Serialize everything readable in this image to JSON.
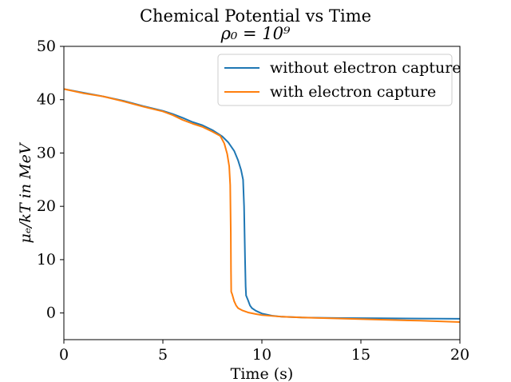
{
  "chart_data": {
    "type": "line",
    "title": "Chemical Potential vs Time",
    "subtitle": "ρ₀ = 10⁹",
    "xlabel": "Time (s)",
    "ylabel": "μₑ/kT in MeV",
    "xlim": [
      0,
      20
    ],
    "ylim": [
      -5,
      50
    ],
    "xticks": [
      0,
      5,
      10,
      15,
      20
    ],
    "yticks": [
      0,
      10,
      20,
      30,
      40,
      50
    ],
    "grid": false,
    "legend_position": "top-right",
    "series": [
      {
        "name": "without electron capture",
        "color": "#1f77b4",
        "x": [
          0,
          1,
          2,
          3,
          4,
          5,
          5.5,
          6,
          6.5,
          7,
          7.5,
          8,
          8.3,
          8.6,
          8.8,
          8.95,
          9.05,
          9.1,
          9.15,
          9.18,
          9.2,
          9.2,
          9.3,
          9.4,
          9.5,
          9.7,
          10,
          10.5,
          11,
          12,
          14,
          16,
          18,
          20
        ],
        "y": [
          42,
          41.3,
          40.6,
          39.8,
          38.8,
          37.9,
          37.3,
          36.6,
          35.8,
          35.2,
          34.3,
          33.1,
          32,
          30.4,
          28.6,
          26.8,
          25,
          20,
          10,
          5,
          3.5,
          3.3,
          2.4,
          1.4,
          0.9,
          0.4,
          -0.1,
          -0.5,
          -0.7,
          -0.85,
          -0.95,
          -1.0,
          -1.05,
          -1.08
        ]
      },
      {
        "name": "with electron capture",
        "color": "#ff7f0e",
        "x": [
          0,
          1,
          2,
          3,
          4,
          5,
          5.5,
          6,
          6.5,
          7,
          7.5,
          7.9,
          8.1,
          8.25,
          8.35,
          8.4,
          8.43,
          8.44,
          8.45,
          8.45,
          8.5,
          8.6,
          8.7,
          8.8,
          9,
          9.3,
          9.7,
          10,
          11,
          12,
          14,
          16,
          18,
          20
        ],
        "y": [
          42,
          41.2,
          40.6,
          39.7,
          38.7,
          37.8,
          37.1,
          36.2,
          35.5,
          34.9,
          34.0,
          33.2,
          31.8,
          29.8,
          27.5,
          24,
          15,
          8,
          4.5,
          4.0,
          3.5,
          2.2,
          1.4,
          0.9,
          0.5,
          0.1,
          -0.2,
          -0.4,
          -0.7,
          -0.85,
          -1.05,
          -1.25,
          -1.45,
          -1.7
        ]
      }
    ]
  }
}
